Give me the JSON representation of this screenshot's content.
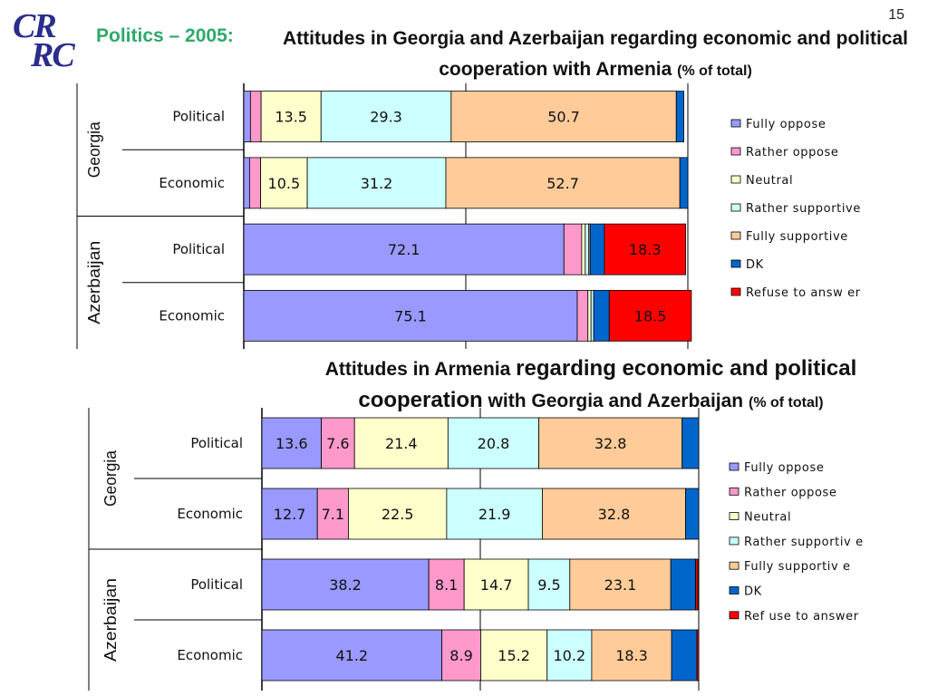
{
  "page_number": "15",
  "logo": {
    "line1": "CR",
    "line2": "RC"
  },
  "section_label": "Politics – 2005:",
  "colors": {
    "Fully oppose": "#9999ff",
    "Rather oppose": "#ff99cc",
    "Neutral": "#ffffcc",
    "Rather supportive": "#ccffff",
    "Fully supportive": "#ffcc99",
    "DK": "#0066cc",
    "Refuse to answer": "#ff0000"
  },
  "chart_data": [
    {
      "type": "bar",
      "orientation": "horizontal",
      "stacked": true,
      "title_main": "Attitudes in Georgia and Azerbaijan regarding economic and political cooperation with Armenia",
      "title_unit": "(% of total)",
      "groups": [
        "Georgia",
        "Georgia",
        "Azerbaijan",
        "Azerbaijan"
      ],
      "group_labels": [
        "Georgia",
        "Azerbaijan"
      ],
      "categories": [
        "Political",
        "Economic",
        "Political",
        "Economic"
      ],
      "xlim": [
        0,
        100
      ],
      "legend_position": "right",
      "legend": [
        "Fully oppose",
        "Rather oppose",
        "Neutral",
        "Rather supportive",
        "Fully supportive",
        "DK",
        "Refuse to answ er"
      ],
      "series": [
        {
          "name": "Fully oppose",
          "values": [
            1.5,
            1.3,
            72.1,
            75.1
          ]
        },
        {
          "name": "Rather oppose",
          "values": [
            2.4,
            2.5,
            4.0,
            2.4
          ]
        },
        {
          "name": "Neutral",
          "values": [
            13.5,
            10.5,
            0.8,
            0.7
          ]
        },
        {
          "name": "Rather supportive",
          "values": [
            29.3,
            31.2,
            0.8,
            0.6
          ]
        },
        {
          "name": "Fully supportive",
          "values": [
            50.7,
            52.7,
            0.3,
            0
          ]
        },
        {
          "name": "DK",
          "values": [
            1.7,
            1.8,
            3.2,
            3.5
          ]
        },
        {
          "name": "Refuse to answer",
          "values": [
            0,
            0,
            18.3,
            18.5
          ]
        }
      ],
      "data_labels": [
        [
          "",
          "",
          "13.5",
          "29.3",
          "50.7",
          "",
          ""
        ],
        [
          "",
          "",
          "10.5",
          "31.2",
          "52.7",
          "",
          ""
        ],
        [
          "72.1",
          "",
          "",
          "",
          "",
          "",
          "18.3"
        ],
        [
          "75.1",
          "",
          "",
          "",
          "",
          "",
          "18.5"
        ]
      ]
    },
    {
      "type": "bar",
      "orientation": "horizontal",
      "stacked": true,
      "title_main_plain_1": "Attitudes in Armenia",
      "title_main_big_1": "regarding economic and political",
      "title_main_big_2": "cooperation",
      "title_main_plain_2": "with Georgia and Azerbaijan",
      "title_unit": "(% of total)",
      "groups": [
        "Georgia",
        "Georgia",
        "Azerbaijan",
        "Azerbaijan"
      ],
      "group_labels": [
        "Georgia",
        "Azerbaijan"
      ],
      "categories": [
        "Political",
        "Economic",
        "Political",
        "Economic"
      ],
      "xlim": [
        0,
        100
      ],
      "legend_position": "right",
      "legend": [
        "Fully  oppose",
        "Rather oppose",
        "Neutral",
        "Rather supportiv e",
        "Fully  supportiv e",
        "DK",
        "Ref use to answer"
      ],
      "series": [
        {
          "name": "Fully oppose",
          "values": [
            13.6,
            12.7,
            38.2,
            41.2
          ]
        },
        {
          "name": "Rather oppose",
          "values": [
            7.6,
            7.1,
            8.1,
            8.9
          ]
        },
        {
          "name": "Neutral",
          "values": [
            21.4,
            22.5,
            14.7,
            15.2
          ]
        },
        {
          "name": "Rather supportive",
          "values": [
            20.8,
            21.9,
            9.5,
            10.2
          ]
        },
        {
          "name": "Fully supportive",
          "values": [
            32.8,
            32.8,
            23.1,
            18.3
          ]
        },
        {
          "name": "DK",
          "values": [
            3.8,
            3.0,
            5.7,
            5.8
          ]
        },
        {
          "name": "Refuse to answer",
          "values": [
            0,
            0,
            0.5,
            0.4
          ]
        }
      ],
      "data_labels": [
        [
          "13.6",
          "7.6",
          "21.4",
          "20.8",
          "32.8",
          "",
          ""
        ],
        [
          "12.7",
          "7.1",
          "22.5",
          "21.9",
          "32.8",
          "",
          ""
        ],
        [
          "38.2",
          "8.1",
          "14.7",
          "9.5",
          "23.1",
          "",
          ""
        ],
        [
          "41.2",
          "8.9",
          "15.2",
          "10.2",
          "18.3",
          "",
          ""
        ]
      ]
    }
  ]
}
